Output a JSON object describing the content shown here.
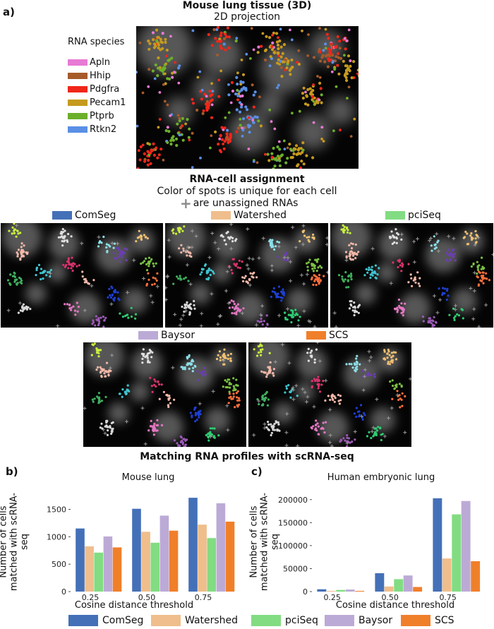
{
  "panel_a": {
    "letter": "a)",
    "title": "Mouse lung tissue (3D)",
    "subtitle": "2D projection",
    "rna_species_title": "RNA species",
    "rna_species": [
      {
        "name": "Apln",
        "color": "#e77ad4"
      },
      {
        "name": "Hhip",
        "color": "#a65a2a"
      },
      {
        "name": "Pdgfra",
        "color": "#f0261a"
      },
      {
        "name": "Pecam1",
        "color": "#c59a1e"
      },
      {
        "name": "Ptprb",
        "color": "#6caf2b"
      },
      {
        "name": "Rtkn2",
        "color": "#5a8fe6"
      }
    ],
    "assignment_title": "RNA-cell assignment",
    "assignment_subtitle": "Color of spots is unique for each cell",
    "unassigned_note": "are unassigned RNAs",
    "methods": [
      {
        "name": "ComSeg",
        "color": "#4470b8"
      },
      {
        "name": "Watershed",
        "color": "#efbe8c"
      },
      {
        "name": "pciSeq",
        "color": "#82dc82"
      },
      {
        "name": "Baysor",
        "color": "#bcaad6"
      },
      {
        "name": "SCS",
        "color": "#f07f2a"
      }
    ]
  },
  "section_title": "Matching RNA profiles with scRNA-seq",
  "chart_data": [
    {
      "panel": "b)",
      "type": "bar",
      "title": "Mouse lung",
      "ylabel": "Number of cells matched with scRNA-seq",
      "xlabel": "Cosine distance threshold",
      "categories": [
        "0.25",
        "0.50",
        "0.75"
      ],
      "yticks": [
        "0",
        "500",
        "1000",
        "1500"
      ],
      "ytick_values": [
        0,
        500,
        1000,
        1500
      ],
      "ylim": [
        0,
        1750
      ],
      "series": [
        {
          "name": "ComSeg",
          "color": "#4470b8",
          "values": [
            1150,
            1510,
            1710
          ]
        },
        {
          "name": "Watershed",
          "color": "#efbe8c",
          "values": [
            825,
            1090,
            1220
          ]
        },
        {
          "name": "pciSeq",
          "color": "#82dc82",
          "values": [
            710,
            890,
            975
          ]
        },
        {
          "name": "Baysor",
          "color": "#bcaad6",
          "values": [
            1005,
            1385,
            1610
          ]
        },
        {
          "name": "SCS",
          "color": "#f07f2a",
          "values": [
            805,
            1110,
            1275
          ]
        }
      ]
    },
    {
      "panel": "c)",
      "type": "bar",
      "title": "Human embryonic lung",
      "ylabel": "Number of cells matched with scRNA-seq",
      "xlabel": "Cosine distance threshold",
      "categories": [
        "0.25",
        "0.50",
        "0.75"
      ],
      "yticks": [
        "0",
        "50000",
        "100000",
        "150000",
        "200000"
      ],
      "ytick_values": [
        0,
        50000,
        100000,
        150000,
        200000
      ],
      "ylim": [
        0,
        215000
      ],
      "series": [
        {
          "name": "ComSeg",
          "color": "#4470b8",
          "values": [
            5000,
            40000,
            203000
          ]
        },
        {
          "name": "Watershed",
          "color": "#efbe8c",
          "values": [
            1500,
            11000,
            72000
          ]
        },
        {
          "name": "pciSeq",
          "color": "#82dc82",
          "values": [
            3500,
            27000,
            168000
          ]
        },
        {
          "name": "Baysor",
          "color": "#bcaad6",
          "values": [
            4500,
            35000,
            197000
          ]
        },
        {
          "name": "SCS",
          "color": "#f07f2a",
          "values": [
            1500,
            10000,
            66000
          ]
        }
      ]
    }
  ],
  "bottom_legend": [
    {
      "name": "ComSeg",
      "color": "#4470b8"
    },
    {
      "name": "Watershed",
      "color": "#efbe8c"
    },
    {
      "name": "pciSeq",
      "color": "#82dc82"
    },
    {
      "name": "Baysor",
      "color": "#bcaad6"
    },
    {
      "name": "SCS",
      "color": "#f07f2a"
    }
  ]
}
